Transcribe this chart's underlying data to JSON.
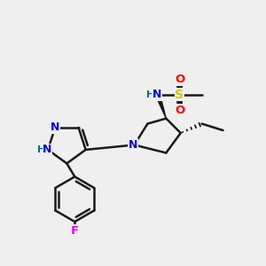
{
  "bg_color": "#efefef",
  "bond_color": "#1a1a1a",
  "bond_width": 1.8,
  "N_color": "#0000cc",
  "H_color": "#007070",
  "O_color": "#ff0000",
  "S_color": "#cccc00",
  "F_color": "#ee00ee",
  "figsize": [
    3.0,
    3.0
  ],
  "dpi": 100,
  "xlim": [
    0,
    10
  ],
  "ylim": [
    0,
    10
  ]
}
